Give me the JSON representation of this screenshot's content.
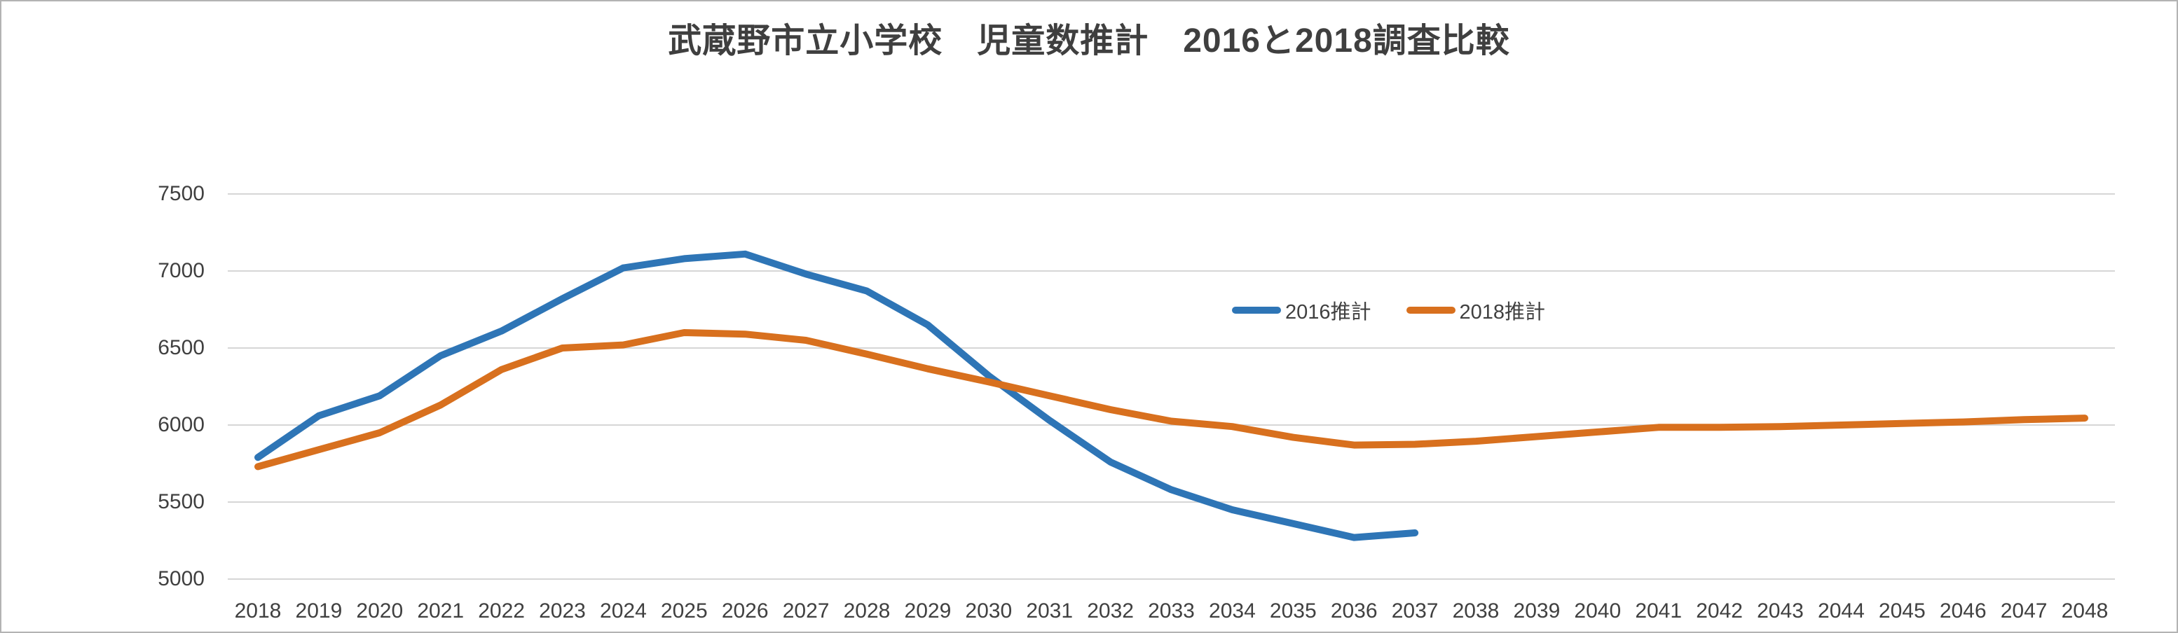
{
  "chart_data": {
    "type": "line",
    "title": "武蔵野市立小学校　児童数推計　2016と2018調査比較",
    "x": [
      2018,
      2019,
      2020,
      2021,
      2022,
      2023,
      2024,
      2025,
      2026,
      2027,
      2028,
      2029,
      2030,
      2031,
      2032,
      2033,
      2034,
      2035,
      2036,
      2037,
      2038,
      2039,
      2040,
      2041,
      2042,
      2043,
      2044,
      2045,
      2046,
      2047,
      2048
    ],
    "yticks": [
      7500,
      7000,
      6500,
      6000,
      5500,
      5000
    ],
    "ylim": [
      5000,
      7500
    ],
    "grid": "horizontal",
    "legend_position": "inside-upper-right",
    "series": [
      {
        "name": "2016推計",
        "color": "#2e75b6",
        "values": [
          5790,
          6060,
          6190,
          6450,
          6610,
          6820,
          7020,
          7080,
          7110,
          6980,
          6870,
          6650,
          6320,
          6030,
          5760,
          5580,
          5450,
          5360,
          5270,
          5300
        ]
      },
      {
        "name": "2018推計",
        "color": "#d8701e",
        "values": [
          5730,
          5840,
          5950,
          6130,
          6360,
          6500,
          6520,
          6600,
          6590,
          6550,
          6460,
          6365,
          6280,
          6190,
          6100,
          6025,
          5990,
          5920,
          5870,
          5875,
          5895,
          5925,
          5955,
          5985,
          5985,
          5990,
          6000,
          6010,
          6020,
          6035,
          6045
        ]
      }
    ]
  },
  "colors": {
    "gridline": "#d6d6d6",
    "label_text": "#404040",
    "title_text": "#3f3f3f",
    "border": "#b3b3b3"
  }
}
